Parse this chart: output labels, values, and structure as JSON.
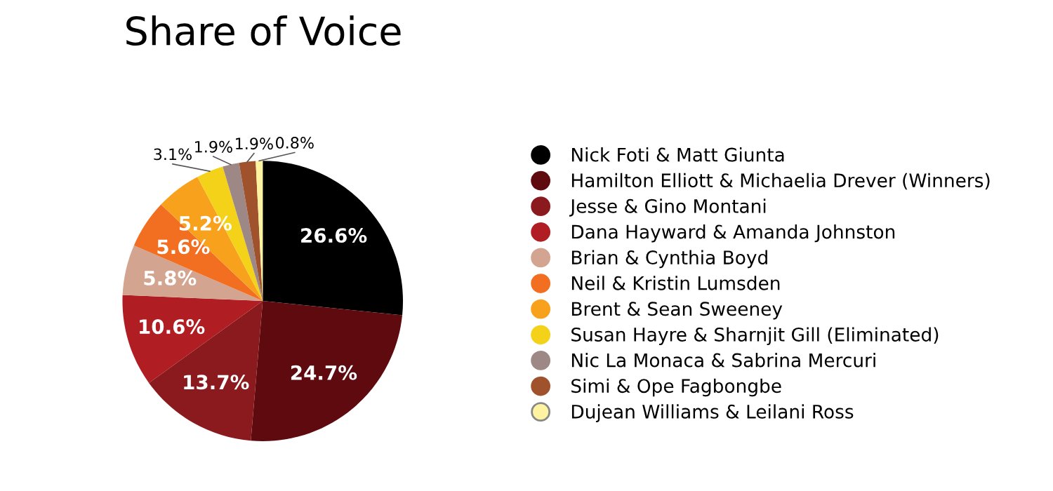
{
  "chart_data": {
    "type": "pie",
    "title": "Share of Voice",
    "categories": [
      "Nick Foti & Matt Giunta",
      "Hamilton Elliott & Michaelia Drever (Winners)",
      "Jesse & Gino Montani",
      "Dana Hayward & Amanda Johnston",
      "Brian & Cynthia Boyd",
      "Neil & Kristin Lumsden",
      "Brent & Sean Sweeney",
      "Susan Hayre & Sharnjit Gill (Eliminated)",
      "Nic La Monaca & Sabrina Mercuri",
      "Simi & Ope Fagbongbe",
      "Dujean Williams & Leilani Ross"
    ],
    "values": [
      26.6,
      24.7,
      13.7,
      10.6,
      5.8,
      5.6,
      5.2,
      3.1,
      1.9,
      1.9,
      0.8
    ],
    "colors": [
      "#000000",
      "#5e0a0f",
      "#8b1a1e",
      "#b01e24",
      "#d3a591",
      "#f26f22",
      "#f7a11c",
      "#f5d21a",
      "#9e8886",
      "#a0522d",
      "#fdf3a0"
    ],
    "value_labels": [
      "26.6%",
      "24.7%",
      "13.7%",
      "10.6%",
      "5.8%",
      "5.6%",
      "5.2%",
      "3.1%",
      "1.9%",
      "1.9%",
      "0.8%"
    ],
    "legend": "right"
  }
}
